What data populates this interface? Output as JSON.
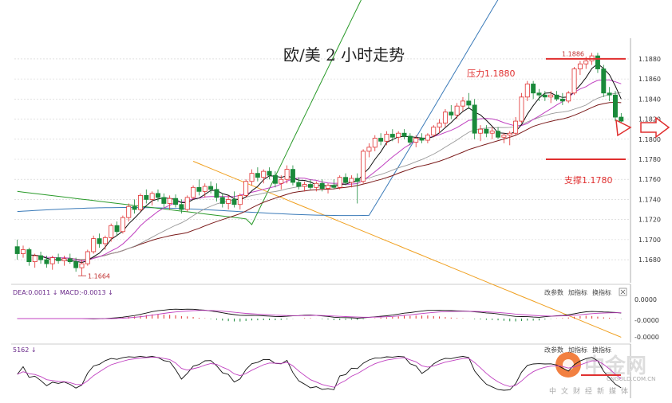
{
  "chart_data": {
    "type": "candlestick",
    "title": "欧/美 2 小时走势",
    "y_ticks": [
      "1.1880",
      "1.1860",
      "1.1840",
      "1.1820",
      "1.1800",
      "1.1780",
      "1.1760",
      "1.1740",
      "1.1720",
      "1.1700",
      "1.1680"
    ],
    "ylim": [
      1.1665,
      1.1895
    ],
    "resistance": {
      "label": "压力1.1880",
      "value": 1.188
    },
    "support": {
      "label": "支撑1.1780",
      "value": 1.178
    },
    "high_label": "1.1886",
    "low_label": "1.1664",
    "candles": [
      [
        1.1693,
        1.17,
        1.168,
        1.1686
      ],
      [
        1.1686,
        1.1694,
        1.1682,
        1.169
      ],
      [
        1.169,
        1.1692,
        1.1674,
        1.1678
      ],
      [
        1.1678,
        1.1686,
        1.1672,
        1.1684
      ],
      [
        1.1684,
        1.1688,
        1.1676,
        1.168
      ],
      [
        1.168,
        1.1684,
        1.1672,
        1.1676
      ],
      [
        1.1676,
        1.1684,
        1.167,
        1.1682
      ],
      [
        1.1682,
        1.1686,
        1.1676,
        1.1679
      ],
      [
        1.1679,
        1.1684,
        1.1674,
        1.1681
      ],
      [
        1.1681,
        1.1686,
        1.1676,
        1.1678
      ],
      [
        1.1678,
        1.1682,
        1.1668,
        1.1672
      ],
      [
        1.1672,
        1.168,
        1.1664,
        1.1676
      ],
      [
        1.1676,
        1.169,
        1.1674,
        1.1688
      ],
      [
        1.1688,
        1.1704,
        1.1686,
        1.1701
      ],
      [
        1.1701,
        1.1706,
        1.1692,
        1.1696
      ],
      [
        1.1696,
        1.1704,
        1.169,
        1.1702
      ],
      [
        1.1702,
        1.1716,
        1.1698,
        1.1714
      ],
      [
        1.1714,
        1.1718,
        1.1704,
        1.1708
      ],
      [
        1.1708,
        1.1724,
        1.1706,
        1.1722
      ],
      [
        1.1722,
        1.1736,
        1.1718,
        1.1733
      ],
      [
        1.1733,
        1.174,
        1.1726,
        1.173
      ],
      [
        1.173,
        1.1746,
        1.1728,
        1.1744
      ],
      [
        1.1744,
        1.175,
        1.1736,
        1.174
      ],
      [
        1.174,
        1.1748,
        1.1734,
        1.1746
      ],
      [
        1.1746,
        1.175,
        1.1738,
        1.1742
      ],
      [
        1.1742,
        1.1746,
        1.1732,
        1.1736
      ],
      [
        1.1736,
        1.1744,
        1.173,
        1.1741
      ],
      [
        1.1741,
        1.1745,
        1.1732,
        1.1735
      ],
      [
        1.1735,
        1.174,
        1.1726,
        1.173
      ],
      [
        1.173,
        1.1744,
        1.1728,
        1.1742
      ],
      [
        1.1742,
        1.1754,
        1.174,
        1.1752
      ],
      [
        1.1752,
        1.176,
        1.1744,
        1.1748
      ],
      [
        1.1748,
        1.1756,
        1.1742,
        1.1753
      ],
      [
        1.1753,
        1.1758,
        1.1746,
        1.175
      ],
      [
        1.175,
        1.1756,
        1.1738,
        1.1742
      ],
      [
        1.1742,
        1.1746,
        1.1732,
        1.1736
      ],
      [
        1.1736,
        1.1744,
        1.173,
        1.174
      ],
      [
        1.174,
        1.1748,
        1.1732,
        1.1735
      ],
      [
        1.1735,
        1.1746,
        1.173,
        1.1744
      ],
      [
        1.1744,
        1.176,
        1.1742,
        1.1758
      ],
      [
        1.1758,
        1.177,
        1.1754,
        1.1766
      ],
      [
        1.1766,
        1.1772,
        1.1758,
        1.1762
      ],
      [
        1.1762,
        1.177,
        1.1756,
        1.1768
      ],
      [
        1.1768,
        1.1772,
        1.176,
        1.1764
      ],
      [
        1.1764,
        1.1768,
        1.1752,
        1.1756
      ],
      [
        1.1756,
        1.1764,
        1.175,
        1.176
      ],
      [
        1.176,
        1.1774,
        1.1756,
        1.177
      ],
      [
        1.177,
        1.1774,
        1.1754,
        1.1757
      ],
      [
        1.1757,
        1.1762,
        1.175,
        1.1753
      ],
      [
        1.1753,
        1.1758,
        1.1748,
        1.1755
      ],
      [
        1.1755,
        1.176,
        1.175,
        1.1752
      ],
      [
        1.1752,
        1.1758,
        1.1748,
        1.1756
      ],
      [
        1.1756,
        1.176,
        1.1748,
        1.1751
      ],
      [
        1.1751,
        1.1756,
        1.1746,
        1.1754
      ],
      [
        1.1754,
        1.176,
        1.175,
        1.1752
      ],
      [
        1.1752,
        1.1764,
        1.175,
        1.1762
      ],
      [
        1.1762,
        1.1766,
        1.1754,
        1.1757
      ],
      [
        1.1757,
        1.1764,
        1.1752,
        1.1761
      ],
      [
        1.1761,
        1.1766,
        1.1736,
        1.1758
      ],
      [
        1.1758,
        1.179,
        1.1756,
        1.1788
      ],
      [
        1.1788,
        1.1796,
        1.1782,
        1.1792
      ],
      [
        1.1792,
        1.1804,
        1.1788,
        1.1801
      ],
      [
        1.1801,
        1.1806,
        1.1794,
        1.1798
      ],
      [
        1.1798,
        1.1808,
        1.1794,
        1.1805
      ],
      [
        1.1805,
        1.181,
        1.1798,
        1.1802
      ],
      [
        1.1802,
        1.1808,
        1.1796,
        1.1806
      ],
      [
        1.1806,
        1.181,
        1.18,
        1.1803
      ],
      [
        1.1803,
        1.1806,
        1.1794,
        1.1797
      ],
      [
        1.1797,
        1.1804,
        1.1792,
        1.1801
      ],
      [
        1.1801,
        1.1806,
        1.1796,
        1.1799
      ],
      [
        1.1799,
        1.1806,
        1.1796,
        1.1804
      ],
      [
        1.1804,
        1.1814,
        1.1802,
        1.1812
      ],
      [
        1.1812,
        1.182,
        1.1806,
        1.1816
      ],
      [
        1.1816,
        1.183,
        1.1812,
        1.1827
      ],
      [
        1.1827,
        1.1834,
        1.182,
        1.1824
      ],
      [
        1.1824,
        1.1836,
        1.182,
        1.1833
      ],
      [
        1.1833,
        1.1842,
        1.1828,
        1.1838
      ],
      [
        1.1838,
        1.1846,
        1.183,
        1.1834
      ],
      [
        1.1834,
        1.184,
        1.18,
        1.1806
      ],
      [
        1.1806,
        1.1814,
        1.1798,
        1.181
      ],
      [
        1.181,
        1.1814,
        1.1802,
        1.1806
      ],
      [
        1.1806,
        1.1812,
        1.18,
        1.1808
      ],
      [
        1.1808,
        1.1812,
        1.18,
        1.1802
      ],
      [
        1.1802,
        1.1806,
        1.1796,
        1.1804
      ],
      [
        1.1804,
        1.1808,
        1.1794,
        1.1806
      ],
      [
        1.1806,
        1.1822,
        1.1804,
        1.1818
      ],
      [
        1.1818,
        1.1846,
        1.1816,
        1.1842
      ],
      [
        1.1842,
        1.1858,
        1.1838,
        1.1855
      ],
      [
        1.1855,
        1.1858,
        1.184,
        1.1846
      ],
      [
        1.1846,
        1.185,
        1.1838,
        1.1844
      ],
      [
        1.1844,
        1.1848,
        1.1838,
        1.1842
      ],
      [
        1.1842,
        1.1848,
        1.1836,
        1.1844
      ],
      [
        1.1844,
        1.1848,
        1.1838,
        1.184
      ],
      [
        1.184,
        1.1846,
        1.1834,
        1.1838
      ],
      [
        1.1838,
        1.1848,
        1.1836,
        1.1846
      ],
      [
        1.1846,
        1.1872,
        1.1844,
        1.187
      ],
      [
        1.187,
        1.1878,
        1.1864,
        1.1875
      ],
      [
        1.1875,
        1.1882,
        1.187,
        1.1878
      ],
      [
        1.1878,
        1.1886,
        1.1874,
        1.1883
      ],
      [
        1.1883,
        1.1886,
        1.1866,
        1.187
      ],
      [
        1.187,
        1.1874,
        1.1842,
        1.1846
      ],
      [
        1.1846,
        1.1852,
        1.1838,
        1.1844
      ],
      [
        1.1844,
        1.1848,
        1.1818,
        1.1822
      ],
      [
        1.1822,
        1.1826,
        1.1814,
        1.1818
      ]
    ],
    "macd_panel": {
      "label": "DEA:0.0011 ↓ MACD:-0.0013 ↓",
      "y_ticks": [
        "0.0000",
        "-0.0000",
        "-0.0000"
      ],
      "buttons": [
        "改参数",
        "加指标",
        "换指标"
      ]
    },
    "kdj_panel": {
      "label": "5162 ↓",
      "buttons": [
        "改参数",
        "加指标",
        "换指标"
      ]
    }
  },
  "colors": {
    "up": "#e03030",
    "down": "#1a8a3a",
    "ma_fast": "#111111",
    "ma_mid": "#c040c0",
    "ma_slow": "#7a1a1a",
    "ma_green": "#2a9a2a",
    "ma_blue": "#3a7ab8",
    "ma_orange": "#f0a020"
  },
  "watermark": {
    "brand": "中金网",
    "sub": "中文财经新媒体",
    "domain": "CNGOLD.COM.CN"
  }
}
